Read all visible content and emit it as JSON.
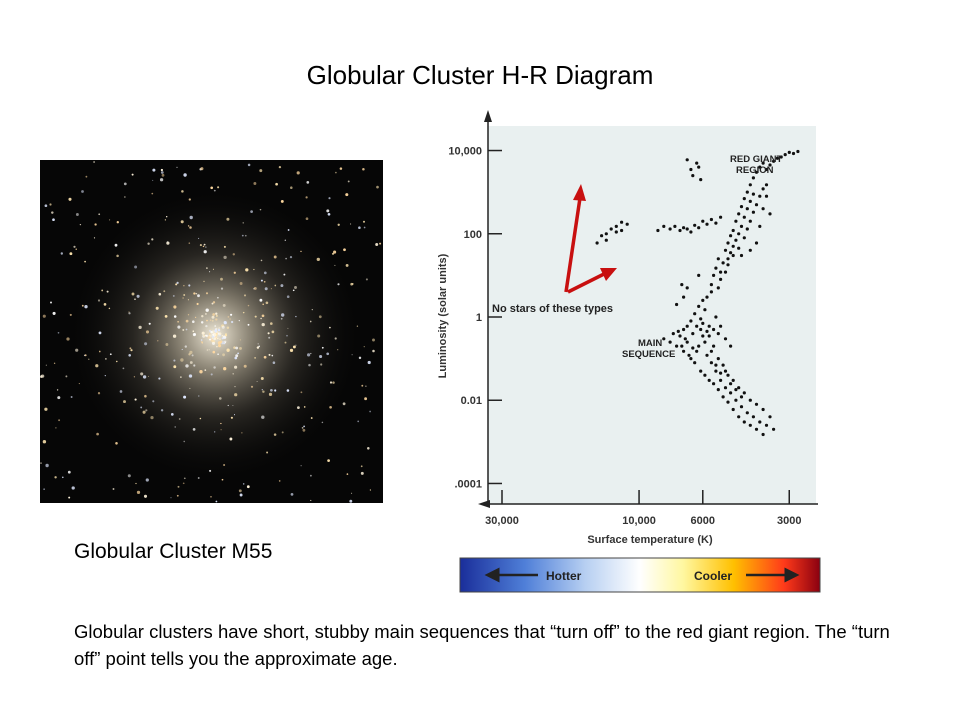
{
  "title": "Globular Cluster H-R Diagram",
  "photo_caption": "Globular Cluster M55",
  "body_text": "Globular clusters have short, stubby main sequences that “turn off” to the red giant region.  The “turn off” point tells you the approximate age.",
  "chart_data": {
    "type": "scatter",
    "title": "",
    "xlabel": "Surface temperature (K)",
    "ylabel": "Luminosity (solar units)",
    "x_scale": "log",
    "y_scale": "log",
    "x_reversed": true,
    "xlim": [
      30000,
      2500
    ],
    "ylim": [
      5e-05,
      20000
    ],
    "grid": false,
    "x_ticks": [
      {
        "value": 30000,
        "label": "30,000"
      },
      {
        "value": 10000,
        "label": "10,000"
      },
      {
        "value": 6000,
        "label": "6000"
      },
      {
        "value": 3000,
        "label": "3000"
      }
    ],
    "y_ticks": [
      {
        "value": 10000,
        "label": "10,000"
      },
      {
        "value": 100,
        "label": "100"
      },
      {
        "value": 1,
        "label": "1"
      },
      {
        "value": 0.01,
        "label": "0.01"
      },
      {
        "value": 0.0001,
        "label": ".0001"
      }
    ],
    "annotations": {
      "red_giant_line1": "RED GIANT",
      "red_giant_line2": "REGION",
      "main_seq_line1": "MAIN",
      "main_seq_line2": "SEQUENCE",
      "no_stars": "No stars of these types"
    },
    "temperature_bar": {
      "hotter": "Hotter",
      "cooler": "Cooler"
    },
    "series": [
      {
        "points": [
          [
            8200,
            0.3
          ],
          [
            7800,
            0.25
          ],
          [
            7600,
            0.4
          ],
          [
            7400,
            0.2
          ],
          [
            7200,
            0.35
          ],
          [
            7000,
            0.15
          ],
          [
            7000,
            0.5
          ],
          [
            6800,
            0.6
          ],
          [
            6800,
            0.25
          ],
          [
            6600,
            0.8
          ],
          [
            6600,
            0.1
          ],
          [
            6500,
            0.4
          ],
          [
            6400,
            1.2
          ],
          [
            6400,
            0.08
          ],
          [
            6300,
            0.6
          ],
          [
            6200,
            1.8
          ],
          [
            6200,
            0.2
          ],
          [
            6100,
            0.05
          ],
          [
            6100,
            0.9
          ],
          [
            6000,
            2.5
          ],
          [
            6000,
            0.35
          ],
          [
            5900,
            0.04
          ],
          [
            5900,
            1.5
          ],
          [
            5800,
            0.12
          ],
          [
            5800,
            3
          ],
          [
            5700,
            0.03
          ],
          [
            5700,
            0.6
          ],
          [
            5600,
            0.08
          ],
          [
            5600,
            4
          ],
          [
            5500,
            0.025
          ],
          [
            5500,
            0.2
          ],
          [
            5400,
            0.05
          ],
          [
            5400,
            1
          ],
          [
            5300,
            0.018
          ],
          [
            5300,
            0.1
          ],
          [
            5200,
            0.03
          ],
          [
            5200,
            0.6
          ],
          [
            5100,
            0.012
          ],
          [
            5100,
            0.07
          ],
          [
            5000,
            0.02
          ],
          [
            5000,
            0.3
          ],
          [
            4900,
            0.009
          ],
          [
            4900,
            0.04
          ],
          [
            4800,
            0.015
          ],
          [
            4800,
            0.2
          ],
          [
            4700,
            0.006
          ],
          [
            4700,
            0.03
          ],
          [
            4600,
            0.01
          ],
          [
            4500,
            0.004
          ],
          [
            4500,
            0.02
          ],
          [
            4400,
            0.007
          ],
          [
            4300,
            0.003
          ],
          [
            4300,
            0.015
          ],
          [
            4200,
            0.005
          ],
          [
            4100,
            0.0025
          ],
          [
            4100,
            0.01
          ],
          [
            4000,
            0.004
          ],
          [
            3900,
            0.002
          ],
          [
            3900,
            0.008
          ],
          [
            3800,
            0.003
          ],
          [
            3700,
            0.0015
          ],
          [
            3700,
            0.006
          ],
          [
            3600,
            0.0025
          ],
          [
            3500,
            0.004
          ],
          [
            3400,
            0.002
          ],
          [
            6300,
            0.15
          ],
          [
            6000,
            0.7
          ],
          [
            5800,
            0.45
          ],
          [
            6500,
            0.18
          ],
          [
            6900,
            0.3
          ],
          [
            7300,
            0.45
          ],
          [
            5600,
            0.15
          ],
          [
            5400,
            0.07
          ],
          [
            5200,
            0.045
          ],
          [
            5000,
            0.05
          ],
          [
            4800,
            0.025
          ],
          [
            4600,
            0.018
          ],
          [
            4400,
            0.012
          ],
          [
            6100,
            0.5
          ],
          [
            5900,
            0.25
          ],
          [
            5700,
            0.35
          ],
          [
            5500,
            0.5
          ],
          [
            5300,
            0.4
          ],
          [
            6700,
            0.12
          ],
          [
            7100,
            0.2
          ],
          [
            5600,
            6
          ],
          [
            5500,
            10
          ],
          [
            5400,
            15
          ],
          [
            5300,
            25
          ],
          [
            5200,
            8
          ],
          [
            5100,
            20
          ],
          [
            5000,
            40
          ],
          [
            5000,
            12
          ],
          [
            4900,
            60
          ],
          [
            4900,
            25
          ],
          [
            4800,
            90
          ],
          [
            4800,
            35
          ],
          [
            4700,
            120
          ],
          [
            4700,
            50
          ],
          [
            4600,
            200
          ],
          [
            4600,
            70
          ],
          [
            4500,
            300
          ],
          [
            4500,
            100
          ],
          [
            4400,
            450
          ],
          [
            4400,
            150
          ],
          [
            4300,
            700
          ],
          [
            4300,
            250
          ],
          [
            4200,
            1000
          ],
          [
            4200,
            400
          ],
          [
            4100,
            1500
          ],
          [
            4100,
            600
          ],
          [
            4000,
            2200
          ],
          [
            4000,
            900
          ],
          [
            3900,
            3000
          ],
          [
            3800,
            4000
          ],
          [
            3700,
            5000
          ],
          [
            3600,
            3500
          ],
          [
            3500,
            4500
          ],
          [
            3400,
            5500
          ],
          [
            3300,
            6500
          ],
          [
            3200,
            7000
          ],
          [
            3100,
            8000
          ],
          [
            3000,
            9000
          ],
          [
            2900,
            8500
          ],
          [
            2800,
            9500
          ],
          [
            5300,
            5
          ],
          [
            5200,
            12
          ],
          [
            4900,
            18
          ],
          [
            4700,
            30
          ],
          [
            4500,
            45
          ],
          [
            4300,
            80
          ],
          [
            4200,
            130
          ],
          [
            4100,
            200
          ],
          [
            4000,
            330
          ],
          [
            3900,
            500
          ],
          [
            3800,
            800
          ],
          [
            3700,
            1200
          ],
          [
            3600,
            800
          ],
          [
            3500,
            300
          ],
          [
            3800,
            150
          ],
          [
            3900,
            60
          ],
          [
            4100,
            40
          ],
          [
            4400,
            30
          ],
          [
            3700,
            400
          ],
          [
            3600,
            1500
          ],
          [
            7500,
            150
          ],
          [
            7200,
            120
          ],
          [
            7000,
            140
          ],
          [
            6800,
            130
          ],
          [
            6600,
            110
          ],
          [
            6400,
            160
          ],
          [
            6200,
            140
          ],
          [
            6000,
            200
          ],
          [
            5800,
            170
          ],
          [
            5600,
            220
          ],
          [
            5400,
            180
          ],
          [
            5200,
            250
          ],
          [
            7800,
            130
          ],
          [
            8200,
            150
          ],
          [
            8600,
            120
          ],
          [
            14000,
            60
          ],
          [
            13500,
            90
          ],
          [
            13000,
            100
          ],
          [
            12500,
            130
          ],
          [
            12000,
            150
          ],
          [
            11500,
            120
          ],
          [
            11000,
            170
          ],
          [
            13000,
            70
          ],
          [
            12000,
            110
          ],
          [
            11500,
            190
          ],
          [
            6500,
            2500
          ],
          [
            6200,
            4000
          ],
          [
            6800,
            6000
          ],
          [
            6300,
            5000
          ],
          [
            6100,
            2000
          ],
          [
            6600,
            3500
          ],
          [
            7000,
            3
          ],
          [
            7400,
            2
          ],
          [
            6800,
            5
          ],
          [
            7100,
            6
          ],
          [
            6200,
            10
          ]
        ]
      }
    ]
  }
}
